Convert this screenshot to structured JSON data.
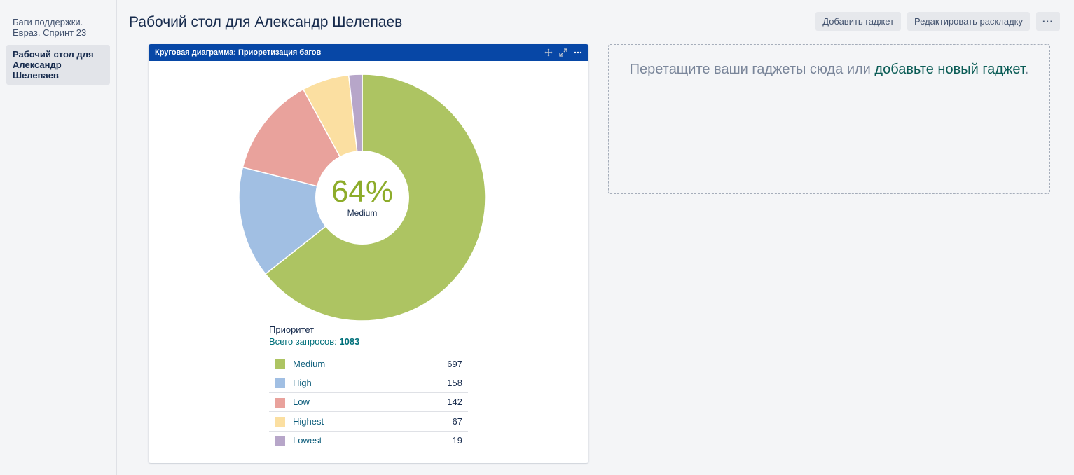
{
  "sidebar": {
    "items": [
      {
        "label": "Баги поддержки. Евраз. Спринт 23"
      },
      {
        "label": "Рабочий стол для Александр Шелепаев"
      }
    ]
  },
  "page": {
    "title": "Рабочий стол для Александр Шелепаев"
  },
  "actions": {
    "add_gadget": "Добавить гаджет",
    "edit_layout": "Редактировать раскладку",
    "more": "···"
  },
  "gadget": {
    "title": "Круговая диаграмма: Приоретизация багов",
    "icons": [
      "move-icon",
      "expand-icon",
      "more-icon"
    ]
  },
  "legend": {
    "caption": "Приоритет",
    "total_label": "Всего запросов:",
    "total_value": "1083"
  },
  "dropzone": {
    "text": "Перетащите ваши гаджеты сюда или ",
    "link": "добавьте новый гаджет",
    "suffix": "."
  },
  "chart_data": {
    "type": "pie",
    "donut": true,
    "center_percent": "64%",
    "center_label": "Medium",
    "categories": [
      "Medium",
      "High",
      "Low",
      "Highest",
      "Lowest"
    ],
    "values": [
      697,
      158,
      142,
      67,
      19
    ],
    "colors": [
      "#adc462",
      "#a1bfe3",
      "#e9a29c",
      "#fbdfa1",
      "#b7a6c9"
    ],
    "center_color": "#8dac2a"
  }
}
